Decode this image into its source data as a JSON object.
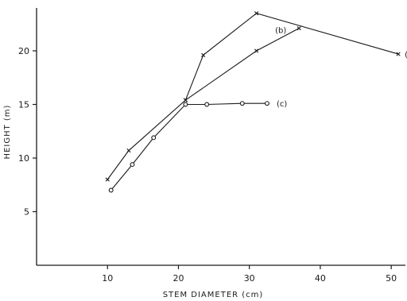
{
  "chart_data": {
    "type": "line",
    "xlabel": "STEM DIAMETER (cm)",
    "ylabel": "HEIGHT (m)",
    "xlim": [
      0,
      52
    ],
    "ylim": [
      0,
      24
    ],
    "xticks": [
      10,
      20,
      30,
      40,
      50
    ],
    "yticks": [
      5,
      10,
      15,
      20
    ],
    "grid": false,
    "series": [
      {
        "name": "(a",
        "marker": "x",
        "points": [
          [
            10,
            8.0
          ],
          [
            13,
            10.7
          ],
          [
            21,
            15.4
          ],
          [
            23.5,
            19.6
          ],
          [
            31,
            23.5
          ],
          [
            51,
            19.7
          ]
        ]
      },
      {
        "name": "(b)",
        "marker": "x",
        "points": [
          [
            21,
            15.4
          ],
          [
            31,
            20.0
          ],
          [
            37,
            22.1
          ]
        ]
      },
      {
        "name": "(c)",
        "marker": "o",
        "points": [
          [
            10.5,
            7.0
          ],
          [
            13.5,
            9.4
          ],
          [
            16.5,
            11.9
          ],
          [
            21,
            15.0
          ],
          [
            24,
            15.0
          ],
          [
            29,
            15.1
          ],
          [
            32.5,
            15.1
          ]
        ]
      }
    ]
  }
}
